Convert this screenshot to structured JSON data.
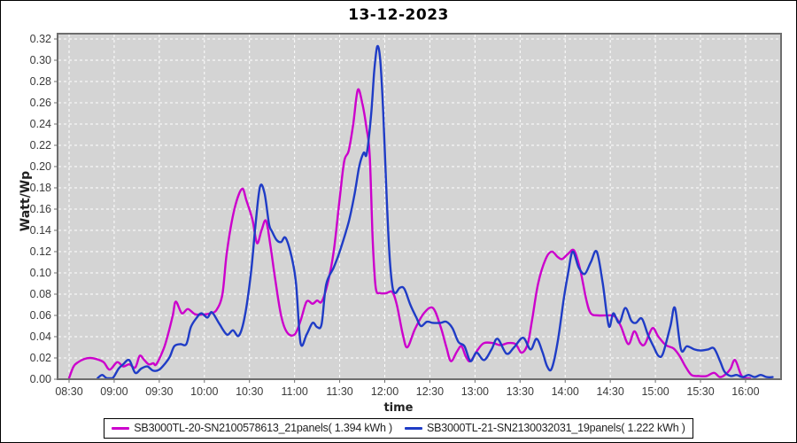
{
  "title": "13-12-2023",
  "chart_data": {
    "type": "line",
    "title": "13-12-2023",
    "xlabel": "time",
    "ylabel": "Watt/Wp",
    "x_ticks": [
      "08:30",
      "09:00",
      "09:30",
      "10:00",
      "10:30",
      "11:00",
      "11:30",
      "12:00",
      "12:30",
      "13:00",
      "13:30",
      "14:00",
      "14:30",
      "15:00",
      "15:30",
      "16:00"
    ],
    "x_tick_interval_minutes": 30,
    "y_ticks": [
      "0.00",
      "0.02",
      "0.04",
      "0.06",
      "0.08",
      "0.10",
      "0.12",
      "0.14",
      "0.16",
      "0.18",
      "0.20",
      "0.22",
      "0.24",
      "0.26",
      "0.28",
      "0.30",
      "0.32"
    ],
    "ylim": [
      0,
      0.32
    ],
    "y_tick_step": 0.02,
    "grid": true,
    "legend_position": "bottom",
    "plot_bg": "#d4d4d4",
    "grid_color": "#ffffff",
    "series": [
      {
        "name": "SB3000TL-20-SN2100578613_21panels( 1.394 kWh )",
        "color": "#cc00cc",
        "points": [
          [
            0,
            0.001
          ],
          [
            3,
            0.012
          ],
          [
            6,
            0.016
          ],
          [
            10,
            0.019
          ],
          [
            14,
            0.02
          ],
          [
            18,
            0.019
          ],
          [
            23,
            0.016
          ],
          [
            27,
            0.009
          ],
          [
            32,
            0.016
          ],
          [
            36,
            0.012
          ],
          [
            40,
            0.014
          ],
          [
            44,
            0.011
          ],
          [
            47,
            0.022
          ],
          [
            50,
            0.018
          ],
          [
            53,
            0.014
          ],
          [
            56,
            0.015
          ],
          [
            58,
            0.014
          ],
          [
            63,
            0.029
          ],
          [
            66,
            0.043
          ],
          [
            69,
            0.06
          ],
          [
            71,
            0.073
          ],
          [
            75,
            0.062
          ],
          [
            79,
            0.066
          ],
          [
            84,
            0.061
          ],
          [
            90,
            0.061
          ],
          [
            94,
            0.062
          ],
          [
            98,
            0.065
          ],
          [
            102,
            0.08
          ],
          [
            105,
            0.12
          ],
          [
            110,
            0.16
          ],
          [
            115,
            0.179
          ],
          [
            118,
            0.168
          ],
          [
            122,
            0.15
          ],
          [
            125,
            0.128
          ],
          [
            128,
            0.14
          ],
          [
            131,
            0.149
          ],
          [
            134,
            0.125
          ],
          [
            137,
            0.095
          ],
          [
            141,
            0.06
          ],
          [
            145,
            0.044
          ],
          [
            150,
            0.042
          ],
          [
            154,
            0.055
          ],
          [
            158,
            0.073
          ],
          [
            162,
            0.071
          ],
          [
            165,
            0.074
          ],
          [
            168,
            0.073
          ],
          [
            172,
            0.09
          ],
          [
            176,
            0.12
          ],
          [
            180,
            0.17
          ],
          [
            183,
            0.205
          ],
          [
            186,
            0.215
          ],
          [
            189,
            0.24
          ],
          [
            192,
            0.272
          ],
          [
            195,
            0.26
          ],
          [
            198,
            0.235
          ],
          [
            200,
            0.21
          ],
          [
            202,
            0.13
          ],
          [
            204,
            0.086
          ],
          [
            207,
            0.081
          ],
          [
            211,
            0.081
          ],
          [
            215,
            0.082
          ],
          [
            218,
            0.07
          ],
          [
            222,
            0.042
          ],
          [
            225,
            0.03
          ],
          [
            230,
            0.047
          ],
          [
            236,
            0.062
          ],
          [
            242,
            0.067
          ],
          [
            247,
            0.05
          ],
          [
            251,
            0.03
          ],
          [
            254,
            0.017
          ],
          [
            258,
            0.026
          ],
          [
            261,
            0.031
          ],
          [
            264,
            0.021
          ],
          [
            267,
            0.017
          ],
          [
            272,
            0.028
          ],
          [
            276,
            0.034
          ],
          [
            282,
            0.034
          ],
          [
            287,
            0.032
          ],
          [
            292,
            0.034
          ],
          [
            297,
            0.033
          ],
          [
            301,
            0.025
          ],
          [
            305,
            0.033
          ],
          [
            308,
            0.056
          ],
          [
            312,
            0.09
          ],
          [
            317,
            0.113
          ],
          [
            321,
            0.12
          ],
          [
            325,
            0.115
          ],
          [
            328,
            0.113
          ],
          [
            332,
            0.118
          ],
          [
            336,
            0.121
          ],
          [
            340,
            0.103
          ],
          [
            344,
            0.075
          ],
          [
            347,
            0.062
          ],
          [
            352,
            0.06
          ],
          [
            358,
            0.06
          ],
          [
            363,
            0.059
          ],
          [
            367,
            0.05
          ],
          [
            372,
            0.033
          ],
          [
            376,
            0.045
          ],
          [
            380,
            0.034
          ],
          [
            383,
            0.033
          ],
          [
            388,
            0.048
          ],
          [
            392,
            0.04
          ],
          [
            397,
            0.032
          ],
          [
            402,
            0.029
          ],
          [
            406,
            0.022
          ],
          [
            410,
            0.012
          ],
          [
            414,
            0.004
          ],
          [
            419,
            0.003
          ],
          [
            424,
            0.003
          ],
          [
            429,
            0.006
          ],
          [
            433,
            0.002
          ],
          [
            437,
            0.005
          ],
          [
            440,
            0.01
          ],
          [
            443,
            0.018
          ],
          [
            447,
            0.004
          ],
          [
            450,
            0.001
          ],
          [
            453,
            0
          ]
        ]
      },
      {
        "name": "SB3000TL-21-SN2130032031_19panels( 1.222 kWh )",
        "color": "#1f3cc6",
        "points": [
          [
            19,
            0.001
          ],
          [
            22,
            0.004
          ],
          [
            25,
            0.001
          ],
          [
            29,
            0.001
          ],
          [
            33,
            0.01
          ],
          [
            36,
            0.014
          ],
          [
            40,
            0.018
          ],
          [
            44,
            0.006
          ],
          [
            48,
            0.01
          ],
          [
            52,
            0.012
          ],
          [
            56,
            0.008
          ],
          [
            60,
            0.009
          ],
          [
            64,
            0.015
          ],
          [
            67,
            0.021
          ],
          [
            70,
            0.031
          ],
          [
            74,
            0.033
          ],
          [
            78,
            0.033
          ],
          [
            81,
            0.049
          ],
          [
            85,
            0.058
          ],
          [
            88,
            0.062
          ],
          [
            92,
            0.058
          ],
          [
            95,
            0.063
          ],
          [
            100,
            0.052
          ],
          [
            105,
            0.042
          ],
          [
            109,
            0.046
          ],
          [
            113,
            0.041
          ],
          [
            117,
            0.06
          ],
          [
            121,
            0.1
          ],
          [
            124,
            0.145
          ],
          [
            127,
            0.181
          ],
          [
            130,
            0.175
          ],
          [
            133,
            0.146
          ],
          [
            135,
            0.139
          ],
          [
            138,
            0.131
          ],
          [
            141,
            0.129
          ],
          [
            144,
            0.133
          ],
          [
            148,
            0.115
          ],
          [
            151,
            0.09
          ],
          [
            154,
            0.034
          ],
          [
            158,
            0.042
          ],
          [
            162,
            0.053
          ],
          [
            165,
            0.049
          ],
          [
            168,
            0.052
          ],
          [
            171,
            0.089
          ],
          [
            176,
            0.105
          ],
          [
            180,
            0.12
          ],
          [
            186,
            0.148
          ],
          [
            190,
            0.175
          ],
          [
            193,
            0.2
          ],
          [
            196,
            0.213
          ],
          [
            198,
            0.212
          ],
          [
            201,
            0.25
          ],
          [
            203,
            0.29
          ],
          [
            205,
            0.313
          ],
          [
            207,
            0.3
          ],
          [
            209,
            0.25
          ],
          [
            211,
            0.18
          ],
          [
            213,
            0.12
          ],
          [
            215,
            0.088
          ],
          [
            217,
            0.081
          ],
          [
            220,
            0.086
          ],
          [
            223,
            0.085
          ],
          [
            227,
            0.07
          ],
          [
            231,
            0.058
          ],
          [
            234,
            0.05
          ],
          [
            238,
            0.054
          ],
          [
            242,
            0.053
          ],
          [
            247,
            0.053
          ],
          [
            251,
            0.054
          ],
          [
            255,
            0.048
          ],
          [
            259,
            0.035
          ],
          [
            263,
            0.031
          ],
          [
            267,
            0.017
          ],
          [
            271,
            0.025
          ],
          [
            276,
            0.018
          ],
          [
            281,
            0.028
          ],
          [
            285,
            0.038
          ],
          [
            291,
            0.024
          ],
          [
            296,
            0.03
          ],
          [
            302,
            0.039
          ],
          [
            307,
            0.028
          ],
          [
            311,
            0.038
          ],
          [
            315,
            0.025
          ],
          [
            318,
            0.012
          ],
          [
            321,
            0.01
          ],
          [
            325,
            0.035
          ],
          [
            329,
            0.075
          ],
          [
            332,
            0.1
          ],
          [
            335,
            0.12
          ],
          [
            339,
            0.105
          ],
          [
            343,
            0.099
          ],
          [
            347,
            0.11
          ],
          [
            351,
            0.12
          ],
          [
            355,
            0.09
          ],
          [
            359,
            0.05
          ],
          [
            362,
            0.062
          ],
          [
            366,
            0.053
          ],
          [
            370,
            0.067
          ],
          [
            374,
            0.055
          ],
          [
            377,
            0.053
          ],
          [
            381,
            0.057
          ],
          [
            385,
            0.042
          ],
          [
            389,
            0.03
          ],
          [
            392,
            0.022
          ],
          [
            395,
            0.024
          ],
          [
            400,
            0.05
          ],
          [
            403,
            0.067
          ],
          [
            407,
            0.028
          ],
          [
            411,
            0.031
          ],
          [
            416,
            0.028
          ],
          [
            420,
            0.027
          ],
          [
            425,
            0.028
          ],
          [
            429,
            0.029
          ],
          [
            433,
            0.017
          ],
          [
            436,
            0.007
          ],
          [
            440,
            0.003
          ],
          [
            444,
            0.004
          ],
          [
            448,
            0.002
          ],
          [
            452,
            0.004
          ],
          [
            456,
            0.002
          ],
          [
            460,
            0.004
          ],
          [
            464,
            0.002
          ],
          [
            468,
            0.002
          ]
        ]
      }
    ]
  }
}
